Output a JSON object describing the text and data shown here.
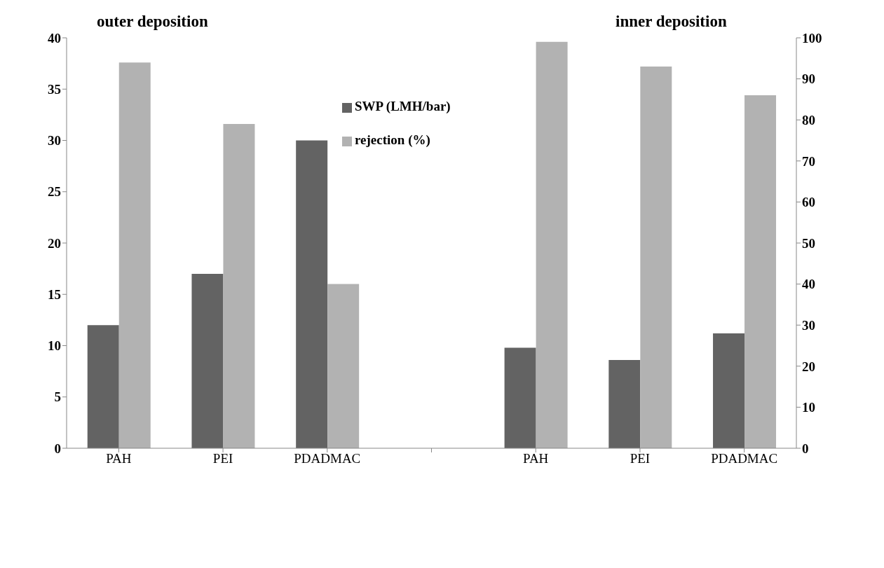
{
  "chart_data": {
    "type": "bar",
    "categories": [
      "PAH",
      "PEI",
      "PDADMAC",
      null,
      "PAH",
      "PEI",
      "PDADMAC"
    ],
    "series": [
      {
        "name": "SWP (LMH/bar)",
        "color": "#636363",
        "values": [
          12,
          17,
          30,
          null,
          9.8,
          8.6,
          11.2
        ]
      },
      {
        "name": "rejection (%)",
        "color": "#b2b2b2",
        "axis": "y2",
        "values": [
          94,
          79,
          40,
          null,
          99,
          93,
          86
        ]
      }
    ],
    "ylim": [
      0,
      40
    ],
    "yticks": [
      0,
      5,
      10,
      15,
      20,
      25,
      30,
      35,
      40
    ],
    "y2lim": [
      0,
      100
    ],
    "y2ticks": [
      0,
      10,
      20,
      30,
      40,
      50,
      60,
      70,
      80,
      90,
      100
    ],
    "annotations": [
      "outer deposition",
      "inner deposition"
    ],
    "grid": false,
    "legend": "top"
  }
}
